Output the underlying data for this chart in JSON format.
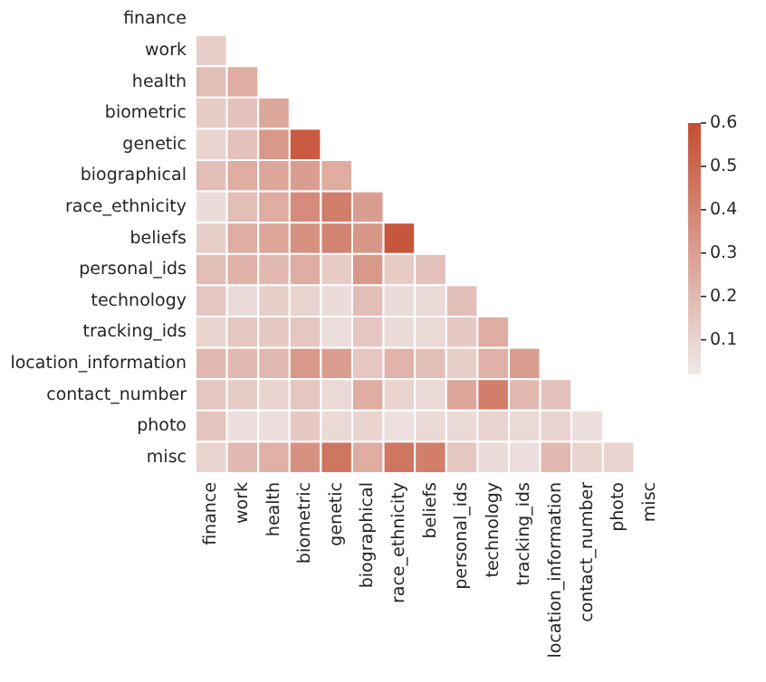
{
  "chart_data": {
    "type": "heatmap",
    "categories": [
      "finance",
      "work",
      "health",
      "biometric",
      "genetic",
      "biographical",
      "race_ethnicity",
      "beliefs",
      "personal_ids",
      "technology",
      "tracking_ids",
      "location_information",
      "contact_number",
      "photo",
      "misc"
    ],
    "y_categories": [
      "finance",
      "work",
      "health",
      "biometric",
      "genetic",
      "biographical",
      "race_ethnicity",
      "beliefs",
      "personal_ids",
      "technology",
      "tracking_ids",
      "location_information",
      "contact_number",
      "photo",
      "misc"
    ],
    "cells": [
      [
        null,
        null,
        null,
        null,
        null,
        null,
        null,
        null,
        null,
        null,
        null,
        null,
        null,
        null,
        null
      ],
      [
        0.12,
        null,
        null,
        null,
        null,
        null,
        null,
        null,
        null,
        null,
        null,
        null,
        null,
        null,
        null
      ],
      [
        0.18,
        0.25,
        null,
        null,
        null,
        null,
        null,
        null,
        null,
        null,
        null,
        null,
        null,
        null,
        null
      ],
      [
        0.13,
        0.17,
        0.27,
        null,
        null,
        null,
        null,
        null,
        null,
        null,
        null,
        null,
        null,
        null,
        null
      ],
      [
        0.1,
        0.17,
        0.32,
        0.55,
        null,
        null,
        null,
        null,
        null,
        null,
        null,
        null,
        null,
        null,
        null
      ],
      [
        0.18,
        0.25,
        0.27,
        0.3,
        0.25,
        null,
        null,
        null,
        null,
        null,
        null,
        null,
        null,
        null,
        null
      ],
      [
        0.07,
        0.18,
        0.25,
        0.37,
        0.42,
        0.3,
        null,
        null,
        null,
        null,
        null,
        null,
        null,
        null,
        null
      ],
      [
        0.12,
        0.25,
        0.27,
        0.35,
        0.4,
        0.33,
        0.57,
        null,
        null,
        null,
        null,
        null,
        null,
        null,
        null
      ],
      [
        0.18,
        0.23,
        0.2,
        0.25,
        0.13,
        0.32,
        0.13,
        0.17,
        null,
        null,
        null,
        null,
        null,
        null,
        null
      ],
      [
        0.15,
        0.07,
        0.12,
        0.1,
        0.07,
        0.18,
        0.07,
        0.08,
        0.18,
        null,
        null,
        null,
        null,
        null,
        null
      ],
      [
        0.1,
        0.15,
        0.14,
        0.15,
        0.06,
        0.15,
        0.07,
        0.08,
        0.14,
        0.25,
        null,
        null,
        null,
        null,
        null
      ],
      [
        0.2,
        0.2,
        0.2,
        0.32,
        0.3,
        0.15,
        0.22,
        0.18,
        0.12,
        0.23,
        0.3,
        null,
        null,
        null,
        null
      ],
      [
        0.15,
        0.13,
        0.1,
        0.15,
        0.08,
        0.25,
        0.1,
        0.08,
        0.27,
        0.42,
        0.2,
        0.17,
        null,
        null,
        null
      ],
      [
        0.16,
        0.06,
        0.06,
        0.14,
        0.08,
        0.1,
        0.05,
        0.08,
        0.08,
        0.1,
        0.08,
        0.1,
        0.06,
        null,
        null
      ],
      [
        0.1,
        0.2,
        0.23,
        0.35,
        0.45,
        0.25,
        0.45,
        0.42,
        0.15,
        0.07,
        0.06,
        0.2,
        0.1,
        0.1,
        null
      ]
    ],
    "clim": [
      0.02,
      0.6
    ],
    "cticks": [
      {
        "value": 0.1,
        "label": "0.1"
      },
      {
        "value": 0.2,
        "label": "0.2"
      },
      {
        "value": 0.3,
        "label": "0.3"
      },
      {
        "value": 0.4,
        "label": "0.4"
      },
      {
        "value": 0.5,
        "label": "0.5"
      },
      {
        "value": 0.6,
        "label": "0.6"
      }
    ]
  }
}
